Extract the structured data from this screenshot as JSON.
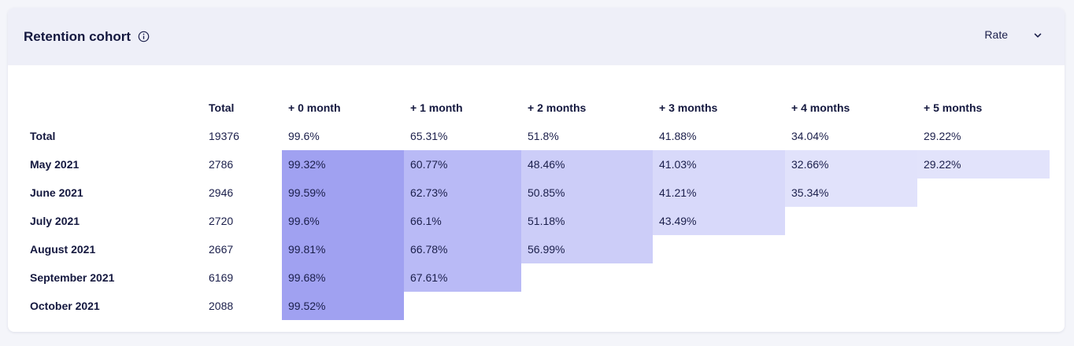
{
  "header": {
    "title": "Retention cohort",
    "info_icon": "info-icon",
    "select": {
      "selected": "Rate",
      "icon": "chevron-down-icon"
    }
  },
  "table": {
    "columns": [
      "",
      "Total",
      "+ 0 month",
      "+ 1 month",
      "+ 2 months",
      "+ 3 months",
      "+ 4 months",
      "+ 5 months"
    ],
    "total_row": {
      "label": "Total",
      "total": "19376",
      "values": [
        "99.6%",
        "65.31%",
        "51.8%",
        "41.88%",
        "34.04%",
        "29.22%"
      ]
    },
    "rows": [
      {
        "label": "May 2021",
        "total": "2786",
        "values": [
          "99.32%",
          "60.77%",
          "48.46%",
          "41.03%",
          "32.66%",
          "29.22%"
        ]
      },
      {
        "label": "June 2021",
        "total": "2946",
        "values": [
          "99.59%",
          "62.73%",
          "50.85%",
          "41.21%",
          "35.34%"
        ]
      },
      {
        "label": "July 2021",
        "total": "2720",
        "values": [
          "99.6%",
          "66.1%",
          "51.18%",
          "43.49%"
        ]
      },
      {
        "label": "August 2021",
        "total": "2667",
        "values": [
          "99.81%",
          "66.78%",
          "56.99%"
        ]
      },
      {
        "label": "September 2021",
        "total": "6169",
        "values": [
          "99.68%",
          "67.61%"
        ]
      },
      {
        "label": "October 2021",
        "total": "2088",
        "values": [
          "99.52%"
        ]
      }
    ]
  },
  "colors": {
    "header_bg": "#eeeff8",
    "heat_month_0": "#a0a1f1",
    "heat_month_1": "#b9baf6",
    "heat_month_2": "#cccdf8",
    "heat_month_3": "#d8d9fa",
    "heat_month_4": "#e1e2fb",
    "heat_month_5": "#e2e3fb"
  }
}
